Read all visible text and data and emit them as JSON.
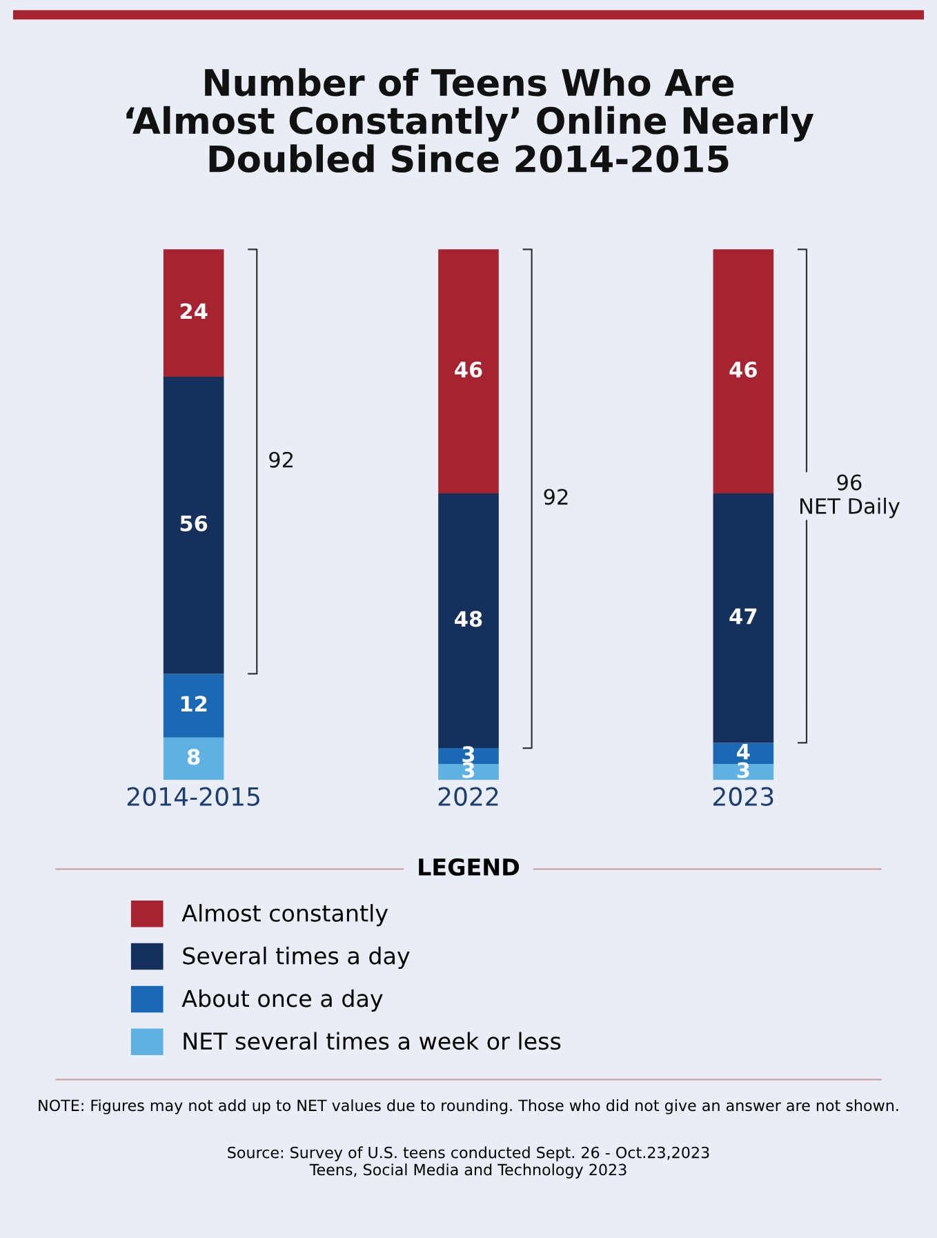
{
  "chart_data": {
    "type": "bar",
    "stacked": true,
    "title": "Number of Teens Who Are\n‘Almost Constantly’ Online Nearly\nDoubled Since 2014-2015",
    "categories": [
      "2014-2015",
      "2022",
      "2023"
    ],
    "series": [
      {
        "name": "NET several times a week or less",
        "color": "#5eb1e2",
        "values": [
          8,
          3,
          3
        ]
      },
      {
        "name": "About once a day",
        "color": "#1b68b5",
        "values": [
          12,
          3,
          4
        ]
      },
      {
        "name": "Several times a day",
        "color": "#15305a",
        "values": [
          56,
          48,
          47
        ]
      },
      {
        "name": "Almost constantly",
        "color": "#a62431",
        "values": [
          24,
          46,
          46
        ]
      }
    ],
    "data_labels": true,
    "legend": "bottom",
    "legend_title": "LEGEND",
    "tick_labels": "x",
    "grid": false,
    "annotations": [
      "92",
      "92",
      "96\nNET Daily",
      "NOTE: Figures may not add up to NET values due to rounding. Those who did not give an answer are not shown.",
      "Source: Survey of U.S. teens conducted Sept. 26 - Oct.23,2023\nTeens, Social Media and Technology 2023"
    ]
  }
}
